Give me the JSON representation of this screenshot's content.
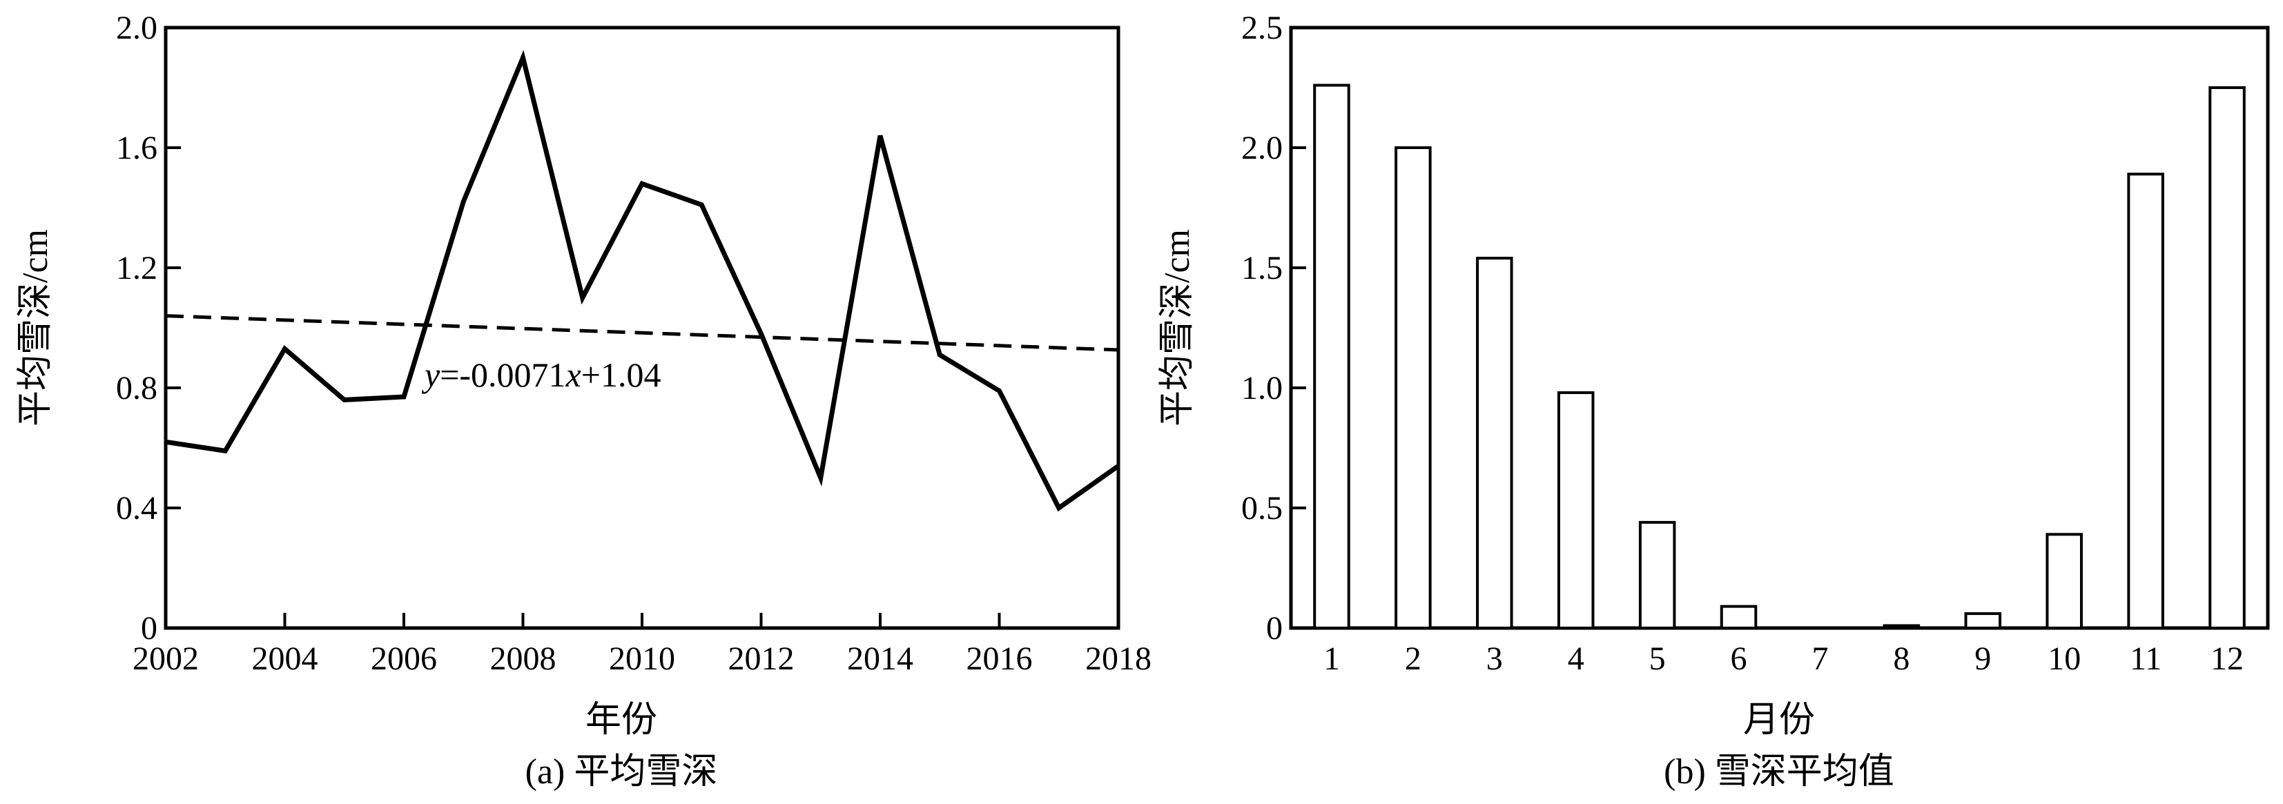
{
  "chart_data": [
    {
      "type": "line",
      "caption": "(a) 平均雪深",
      "xlabel": "年份",
      "ylabel": "平均雪深/cm",
      "xlim": [
        2002,
        2018
      ],
      "ylim": [
        0,
        2.0
      ],
      "xticks": [
        "2002",
        "2004",
        "2006",
        "2008",
        "2010",
        "2012",
        "2014",
        "2016",
        "2018"
      ],
      "yticks": [
        "0",
        "0.4",
        "0.8",
        "1.2",
        "1.6",
        "2.0"
      ],
      "grid": false,
      "series": [
        {
          "x": [
            2002,
            2003,
            2004,
            2005,
            2006,
            2007,
            2008,
            2009,
            2010,
            2011,
            2012,
            2013,
            2014,
            2015,
            2016,
            2017,
            2018
          ],
          "values": [
            0.62,
            0.59,
            0.93,
            0.76,
            0.77,
            1.42,
            1.9,
            1.1,
            1.48,
            1.41,
            0.98,
            0.5,
            1.64,
            0.91,
            0.79,
            0.4,
            0.54
          ],
          "style": "solid"
        }
      ],
      "trendline": {
        "slope": -0.0071,
        "intercept": 1.04,
        "style": "dashed",
        "label_prefix": "y",
        "label_middle": "=-0.0071",
        "label_var": "x",
        "label_suffix": "+1.04"
      }
    },
    {
      "type": "bar",
      "caption": "(b) 雪深平均值",
      "xlabel": "月份",
      "ylabel": "平均雪深/cm",
      "ylim": [
        0,
        2.5
      ],
      "yticks": [
        "0",
        "0.5",
        "1.0",
        "1.5",
        "2.0",
        "2.5"
      ],
      "categories": [
        "1",
        "2",
        "3",
        "4",
        "5",
        "6",
        "7",
        "8",
        "9",
        "10",
        "11",
        "12"
      ],
      "values": [
        2.26,
        2.0,
        1.54,
        0.98,
        0.44,
        0.09,
        0.0,
        0.01,
        0.06,
        0.39,
        1.89,
        2.25
      ],
      "grid": false,
      "bar_fill": "#ffffff",
      "bar_stroke": "#000000"
    }
  ]
}
